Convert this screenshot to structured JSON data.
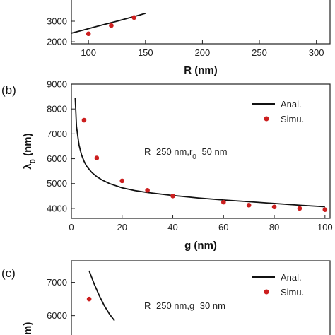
{
  "chart_data": [
    {
      "panel": "a",
      "type": "scatter",
      "xlabel": "R (nm)",
      "ylabel": "",
      "xlim": [
        85,
        312
      ],
      "ylim": [
        1900,
        4100
      ],
      "xticks": [
        100,
        150,
        200,
        250,
        300
      ],
      "yticks": [
        2000,
        3000
      ],
      "series": [
        {
          "style": "line",
          "color": "#111111",
          "x": [
            85,
            95,
            105,
            115,
            125,
            135,
            145,
            150
          ],
          "y": [
            2420,
            2560,
            2710,
            2860,
            3000,
            3150,
            3300,
            3380
          ]
        },
        {
          "style": "points",
          "color": "#cc1f1f",
          "x": [
            100,
            120,
            140
          ],
          "y": [
            2390,
            2790,
            3180
          ]
        }
      ]
    },
    {
      "panel": "b",
      "label": "(b)",
      "type": "scatter",
      "xlabel": "g (nm)",
      "ylabel": "λ0 (nm)",
      "ylabel_main": "λ",
      "ylabel_sub": "0",
      "ylabel_unit": " (nm)",
      "xlim": [
        0,
        102
      ],
      "ylim": [
        3600,
        9000
      ],
      "xticks": [
        0,
        20,
        40,
        60,
        80,
        100
      ],
      "yticks": [
        4000,
        5000,
        6000,
        7000,
        8000,
        9000
      ],
      "annotation": {
        "prefix": "R=250 nm,r",
        "sub": "0",
        "suffix": "=50 nm"
      },
      "legend": {
        "position": "top-right",
        "entries": [
          {
            "label": "Anal.",
            "marker": "line"
          },
          {
            "label": "Simu.",
            "marker": "point"
          }
        ]
      },
      "series": [
        {
          "name": "Anal.",
          "style": "line",
          "color": "#111111",
          "x": [
            1.5,
            2,
            3,
            4,
            5,
            6,
            8,
            10,
            12,
            15,
            20,
            25,
            30,
            40,
            50,
            60,
            70,
            80,
            90,
            100
          ],
          "y": [
            8450,
            7300,
            6550,
            6150,
            5900,
            5700,
            5450,
            5280,
            5150,
            5000,
            4830,
            4720,
            4640,
            4520,
            4420,
            4340,
            4270,
            4200,
            4130,
            4070
          ]
        },
        {
          "name": "Simu.",
          "style": "points",
          "color": "#cc1f1f",
          "x": [
            5,
            10,
            20,
            30,
            40,
            60,
            70,
            80,
            90,
            100
          ],
          "y": [
            7550,
            6030,
            5110,
            4730,
            4500,
            4250,
            4130,
            4060,
            4000,
            3950
          ]
        }
      ]
    },
    {
      "panel": "c",
      "label": "(c)",
      "type": "scatter",
      "xlabel": "",
      "ylabel": "",
      "ylabel_visible": "m)",
      "xlim": [
        0,
        102
      ],
      "ylim": [
        5100,
        7650
      ],
      "yticks": [
        6000,
        7000
      ],
      "annotation": {
        "text": "R=250 nm,g=30 nm"
      },
      "legend": {
        "position": "top-right",
        "entries": [
          {
            "label": "Anal.",
            "marker": "line"
          },
          {
            "label": "Simu.",
            "marker": "point"
          }
        ]
      },
      "series": [
        {
          "name": "Anal.",
          "style": "line",
          "color": "#111111",
          "x": [
            7,
            9,
            11,
            13,
            15,
            17
          ],
          "y": [
            7350,
            6950,
            6600,
            6300,
            6050,
            5850
          ]
        },
        {
          "name": "Simu.",
          "style": "points",
          "color": "#cc1f1f",
          "x": [
            7
          ],
          "y": [
            6500
          ]
        }
      ]
    }
  ]
}
